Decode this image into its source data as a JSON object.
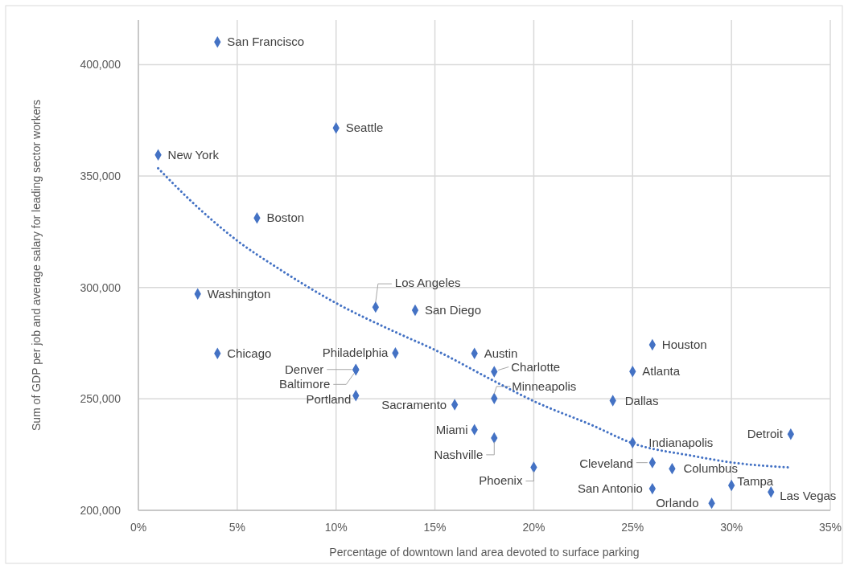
{
  "chart_data": {
    "type": "scatter",
    "xlabel": "Percentage of downtown land area devoted to surface parking",
    "ylabel": "Sum of GDP per job and average salary for leading sector workers",
    "xlim": [
      0,
      35
    ],
    "ylim": [
      200000,
      420000
    ],
    "xticks": [
      {
        "value": 0,
        "label": "0%"
      },
      {
        "value": 5,
        "label": "5%"
      },
      {
        "value": 10,
        "label": "10%"
      },
      {
        "value": 15,
        "label": "15%"
      },
      {
        "value": 20,
        "label": "20%"
      },
      {
        "value": 25,
        "label": "25%"
      },
      {
        "value": 30,
        "label": "30%"
      },
      {
        "value": 35,
        "label": "35%"
      }
    ],
    "yticks": [
      {
        "value": 200000,
        "label": "200,000"
      },
      {
        "value": 250000,
        "label": "250,000"
      },
      {
        "value": 300000,
        "label": "300,000"
      },
      {
        "value": 350000,
        "label": "350,000"
      },
      {
        "value": 400000,
        "label": "400,000"
      }
    ],
    "grid": true,
    "marker": "diamond",
    "series": [
      {
        "color": "#4472c4",
        "x": [
          1,
          3,
          4,
          4,
          6,
          10,
          11,
          11,
          11,
          12,
          13,
          14,
          16,
          17,
          17,
          18,
          18,
          18,
          20,
          24,
          25,
          25,
          26,
          26,
          26,
          27,
          29,
          30,
          32,
          33
        ],
        "values": [
          359500,
          297100,
          410200,
          270400,
          331200,
          371600,
          263200,
          263000,
          251500,
          291200,
          270600,
          289800,
          247400,
          270400,
          236200,
          262200,
          250200,
          232500,
          219300,
          249200,
          262300,
          230400,
          274300,
          221400,
          209700,
          218700,
          203200,
          211200,
          208200,
          234200
        ],
        "value_labels": [
          "New York",
          "Washington",
          "San Francisco",
          "Chicago",
          "Boston",
          "Seattle",
          "Denver",
          "Baltimore",
          "Portland",
          "Los Angeles",
          "Philadelphia",
          "San Diego",
          "Sacramento",
          "Austin",
          "Miami",
          "Charlotte",
          "Minneapolis",
          "Nashville",
          "Phoenix",
          "Dallas",
          "Atlanta",
          "Indianapolis",
          "Houston",
          "Cleveland",
          "San Antonio",
          "Columbus",
          "Orlando",
          "Tampa",
          "Las Vegas",
          "Detroit"
        ]
      },
      {
        "type": "line",
        "color": "#4472c4",
        "line_style": "dotted",
        "marker": "none",
        "x": [
          1,
          3,
          5,
          7,
          10,
          13,
          15,
          18,
          20,
          23,
          25,
          28,
          30,
          33
        ],
        "values": [
          353500,
          336000,
          321000,
          309000,
          293000,
          280000,
          272000,
          258000,
          249000,
          238000,
          230100,
          224500,
          221500,
          219200
        ]
      }
    ]
  }
}
